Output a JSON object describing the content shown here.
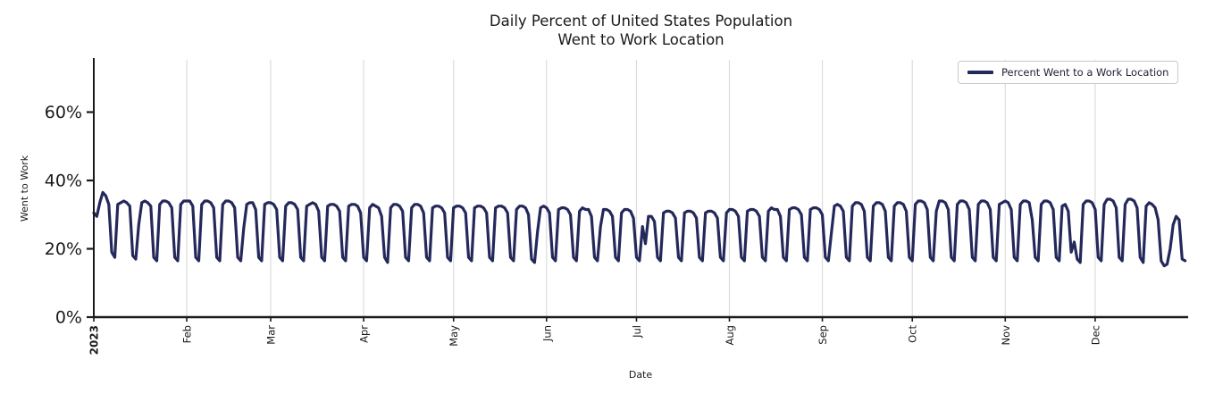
{
  "page": {
    "background": "#ffffff"
  },
  "chart_data": {
    "type": "line",
    "title_line1": "Daily Percent of United States Population",
    "title_line2": "Went to Work Location",
    "xlabel": "Date",
    "ylabel": "Went to Work",
    "legend": {
      "position": "upper right",
      "entries": [
        {
          "label": "Percent Went to a Work Location",
          "color": "#24285a"
        }
      ]
    },
    "line_color": "#24285a",
    "line_width": 3.2,
    "grid": "vertical-month-lines",
    "grid_color": "#dcdcdc",
    "axis_color": "#1a1a1a",
    "ylim": [
      0,
      75.3
    ],
    "yticks": [
      {
        "value": 0,
        "label": "0%"
      },
      {
        "value": 20,
        "label": "20%"
      },
      {
        "value": 40,
        "label": "40%"
      },
      {
        "value": 60,
        "label": "60%"
      }
    ],
    "xticks": [
      {
        "day": 0,
        "label": "2023",
        "bold": true
      },
      {
        "day": 31,
        "label": "Feb"
      },
      {
        "day": 59,
        "label": "Mar"
      },
      {
        "day": 90,
        "label": "Apr"
      },
      {
        "day": 120,
        "label": "May"
      },
      {
        "day": 151,
        "label": "Jun"
      },
      {
        "day": 181,
        "label": "Jul"
      },
      {
        "day": 212,
        "label": "Aug"
      },
      {
        "day": 243,
        "label": "Sep"
      },
      {
        "day": 273,
        "label": "Oct"
      },
      {
        "day": 304,
        "label": "Nov"
      },
      {
        "day": 334,
        "label": "Dec"
      }
    ],
    "x_start_date": "2023-01-01",
    "x_days": 365,
    "series": [
      {
        "name": "Percent Went to a Work Location",
        "unit": "%",
        "daily_values": [
          30.5,
          29.5,
          33.5,
          36.5,
          35.5,
          33,
          19,
          17.5,
          33,
          33.5,
          34,
          33.5,
          32.5,
          18,
          17,
          27,
          33.5,
          34,
          33.5,
          32.5,
          17.5,
          16.5,
          33,
          34,
          34,
          33.5,
          32,
          17.5,
          16.5,
          33,
          34,
          34,
          34,
          32.5,
          17.5,
          16.5,
          33,
          34,
          34,
          33.5,
          32,
          17.5,
          16.5,
          33,
          34,
          34,
          33.5,
          32,
          17.5,
          16.5,
          26,
          33,
          33.5,
          33.5,
          31.5,
          17.5,
          16.5,
          33,
          33.5,
          33.5,
          33,
          31.5,
          17.5,
          16.5,
          32.5,
          33.5,
          33.5,
          33,
          31.5,
          17.5,
          16.5,
          32.5,
          33,
          33.5,
          33,
          31,
          17.5,
          16.5,
          32.5,
          33,
          33,
          32.5,
          31,
          17.5,
          16.5,
          32.5,
          33,
          33,
          32.5,
          30.5,
          17.5,
          16.5,
          32,
          33,
          32.5,
          32,
          29.5,
          17.5,
          16,
          32,
          33,
          33,
          32.5,
          31,
          17.5,
          16.5,
          32,
          33,
          33,
          32.5,
          30.5,
          17.5,
          16.5,
          32,
          32.5,
          32.5,
          32,
          30.5,
          17.5,
          16.5,
          32,
          32.5,
          32.5,
          32,
          30.5,
          17.5,
          16.5,
          32,
          32.5,
          32.5,
          32,
          30.5,
          17.5,
          16.5,
          32,
          32.5,
          32.5,
          32,
          30.5,
          17.5,
          16.5,
          31.5,
          32.5,
          32.5,
          32,
          30,
          17,
          16,
          25,
          32,
          32.5,
          32,
          30.5,
          17.5,
          16.5,
          31.5,
          32,
          32,
          31.5,
          30,
          17.5,
          16.5,
          31,
          32,
          31.5,
          31.5,
          29.5,
          17.5,
          16.5,
          26.5,
          31.5,
          31.5,
          31,
          29.5,
          17.5,
          16.5,
          30.5,
          31.5,
          31.5,
          31,
          29,
          17.5,
          16.5,
          26.5,
          21.5,
          29.5,
          29.5,
          28,
          17.5,
          16.5,
          30.5,
          31,
          31,
          30.5,
          29,
          17.5,
          16.5,
          30.5,
          31,
          31,
          30.5,
          29,
          17.5,
          16.5,
          30.5,
          31,
          31,
          30.5,
          29,
          17.5,
          16.5,
          30.5,
          31.5,
          31.5,
          31,
          29.5,
          17.5,
          16.5,
          31,
          31.5,
          31.5,
          31,
          29.5,
          17.5,
          16.5,
          31,
          32,
          31.5,
          31.5,
          29.5,
          17.5,
          16.5,
          31.5,
          32,
          32,
          31.5,
          30,
          17.5,
          16.5,
          31.5,
          32,
          32,
          31.5,
          30,
          17.5,
          16.5,
          24.5,
          32.5,
          33,
          32.5,
          31,
          17.5,
          16.5,
          32.5,
          33.5,
          33.5,
          33,
          31,
          17.5,
          16.5,
          32.5,
          33.5,
          33.5,
          33,
          31,
          17.5,
          16.5,
          32.5,
          33.5,
          33.5,
          33,
          31,
          17.5,
          16.5,
          33,
          34,
          34,
          33.5,
          31.5,
          17.5,
          16.5,
          31,
          34,
          34,
          33.5,
          31.5,
          17.5,
          16.5,
          33,
          34,
          34,
          33.5,
          31.5,
          17.5,
          16.5,
          33,
          34,
          34,
          33.5,
          31.5,
          17.5,
          16.5,
          33,
          33.5,
          34,
          33.5,
          31.5,
          17.5,
          16.5,
          33,
          34,
          34,
          33.5,
          28.5,
          17.5,
          16.5,
          33,
          34,
          34,
          33.5,
          31.5,
          17.5,
          16.5,
          32.5,
          33,
          31,
          19,
          22,
          17,
          16,
          33,
          34,
          34,
          33.5,
          31.5,
          17.5,
          16.5,
          33,
          34.5,
          34.5,
          34,
          32,
          17.5,
          16.5,
          33,
          34.5,
          34.5,
          34,
          32,
          17.5,
          16,
          32.5,
          33.5,
          33,
          32,
          28.5,
          16.5,
          15,
          15.5,
          20,
          27,
          29.5,
          28.5,
          17,
          16.5
        ]
      }
    ]
  }
}
